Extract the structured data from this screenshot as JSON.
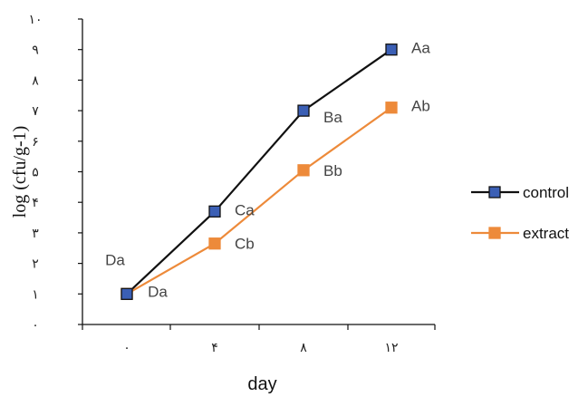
{
  "chart_data": {
    "type": "line",
    "xlabel": "day",
    "ylabel": "log (cfu/g-1)",
    "x": [
      0,
      4,
      8,
      12
    ],
    "x_tick_labels": [
      "٠",
      "۴",
      "٨",
      "١٢"
    ],
    "ylim": [
      0,
      10
    ],
    "y_tick_labels": [
      "٠",
      "١",
      "٢",
      "٣",
      "۴",
      "۵",
      "۶",
      "٧",
      "٨",
      "٩",
      "١٠"
    ],
    "grid": false,
    "legend_position": "right",
    "series": [
      {
        "name": "control",
        "values": [
          1.0,
          3.7,
          7.0,
          9.0
        ],
        "labels": [
          "Da",
          "Ca",
          "Ba",
          "Aa"
        ]
      },
      {
        "name": "extract",
        "values": [
          1.0,
          2.65,
          5.05,
          7.1
        ],
        "labels": [
          "Da",
          "Cb",
          "Bb",
          "Ab"
        ]
      }
    ]
  },
  "colors": {
    "control_line": "#111111",
    "control_marker": "#3b5fb5",
    "extract_line": "#ed8a3a",
    "extract_marker": "#ed8a3a",
    "axis": "#111111"
  }
}
